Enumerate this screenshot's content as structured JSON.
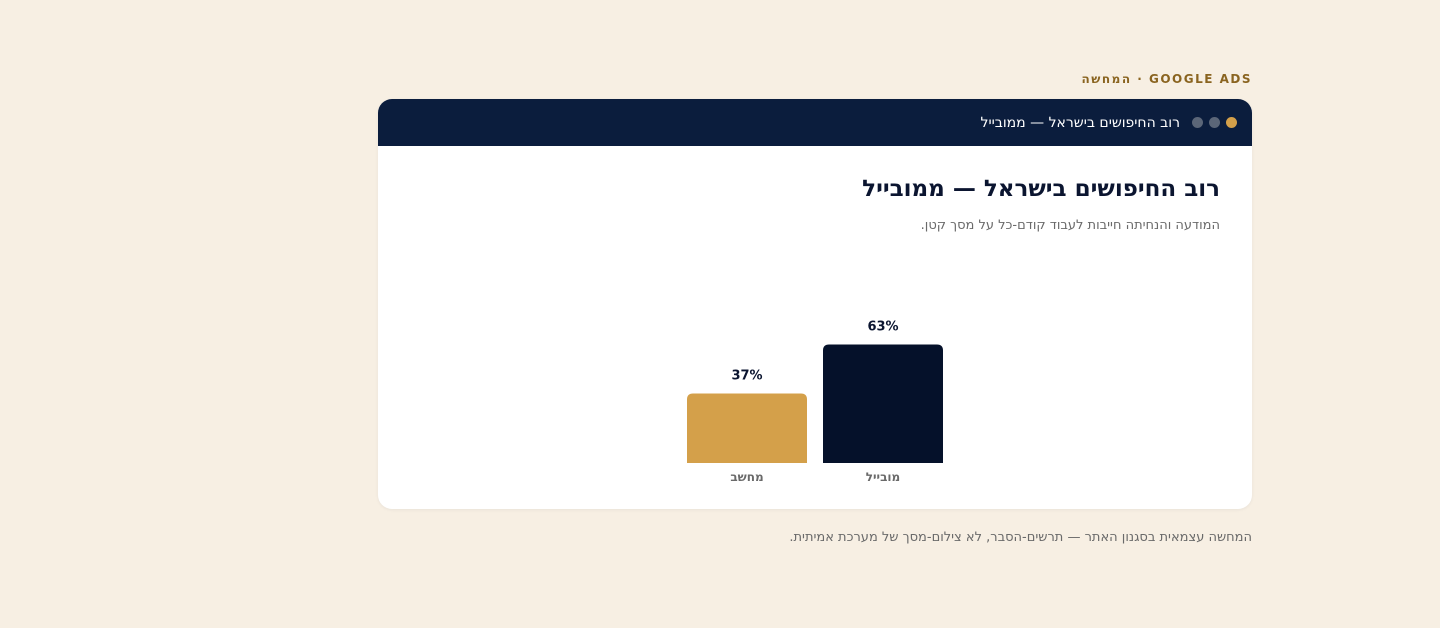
{
  "eyebrow": "GOOGLE ADS · המחשה",
  "window": {
    "title": "רוב החיפושים בישראל — ממובייל",
    "dot_colors": [
      "#d4a04a",
      "#5b6678",
      "#5b6678"
    ]
  },
  "footnote": "המחשה עצמאית בסגנון האתר — תרשים-הסבר, לא צילום-מסך של מערכת אמיתית.",
  "colors": {
    "background": "#f7efe3",
    "titlebar": "#0b1d3d",
    "accent_gold": "#d4a04a",
    "navy_bar": "#05112a"
  },
  "chart_data": {
    "type": "bar",
    "title": "רוב החיפושים בישראל — ממובייל",
    "subtitle": "המודעה והנחיתה חייבות לעבוד קודם-כל על מסך קטן.",
    "categories": [
      "מובייל",
      "מחשב"
    ],
    "values": [
      63,
      37
    ],
    "value_labels": [
      "63%",
      "37%"
    ],
    "unit": "%",
    "bar_colors": [
      "#05112a",
      "#d4a04a"
    ],
    "ylim": [
      0,
      100
    ],
    "grid": false,
    "legend": "none"
  }
}
